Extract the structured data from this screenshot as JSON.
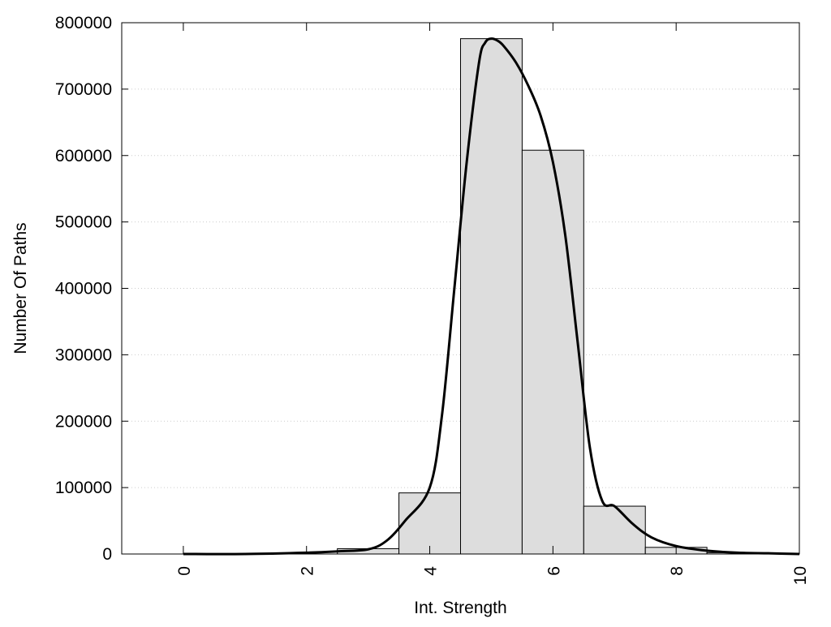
{
  "chart_data": {
    "type": "bar",
    "xlabel": "Int. Strength",
    "ylabel": "Number Of Paths",
    "xlim": [
      -1,
      10
    ],
    "ylim": [
      0,
      800000
    ],
    "x_ticks": [
      0,
      2,
      4,
      6,
      8,
      10
    ],
    "y_ticks": [
      0,
      100000,
      200000,
      300000,
      400000,
      500000,
      600000,
      700000,
      800000
    ],
    "grid": "horizontal-dotted",
    "colors": {
      "bar_fill": "#dddddd",
      "bar_stroke": "#000000",
      "curve": "#000000",
      "grid": "#cccccc"
    },
    "histogram": {
      "bin_width": 1,
      "bins": [
        {
          "x": 0,
          "value": 0
        },
        {
          "x": 1,
          "value": 0
        },
        {
          "x": 2,
          "value": 0
        },
        {
          "x": 3,
          "value": 8000
        },
        {
          "x": 4,
          "value": 92000
        },
        {
          "x": 5,
          "value": 776000
        },
        {
          "x": 6,
          "value": 608000
        },
        {
          "x": 7,
          "value": 72000
        },
        {
          "x": 8,
          "value": 10000
        },
        {
          "x": 9,
          "value": 2000
        }
      ]
    },
    "curve": {
      "x": [
        0,
        1,
        2,
        2.5,
        3,
        3.3,
        3.6,
        4,
        4.2,
        4.4,
        4.6,
        4.8,
        4.9,
        5,
        5.1,
        5.2,
        5.4,
        5.6,
        5.8,
        6,
        6.2,
        6.4,
        6.6,
        6.8,
        7,
        7.3,
        7.6,
        8,
        8.5,
        9,
        9.5,
        10
      ],
      "y": [
        0,
        0,
        2000,
        4000,
        7000,
        20000,
        50000,
        100000,
        210000,
        400000,
        590000,
        740000,
        770000,
        776000,
        773000,
        765000,
        740000,
        705000,
        660000,
        590000,
        480000,
        320000,
        160000,
        80000,
        72000,
        45000,
        25000,
        12000,
        5000,
        2000,
        1000,
        0
      ]
    }
  }
}
